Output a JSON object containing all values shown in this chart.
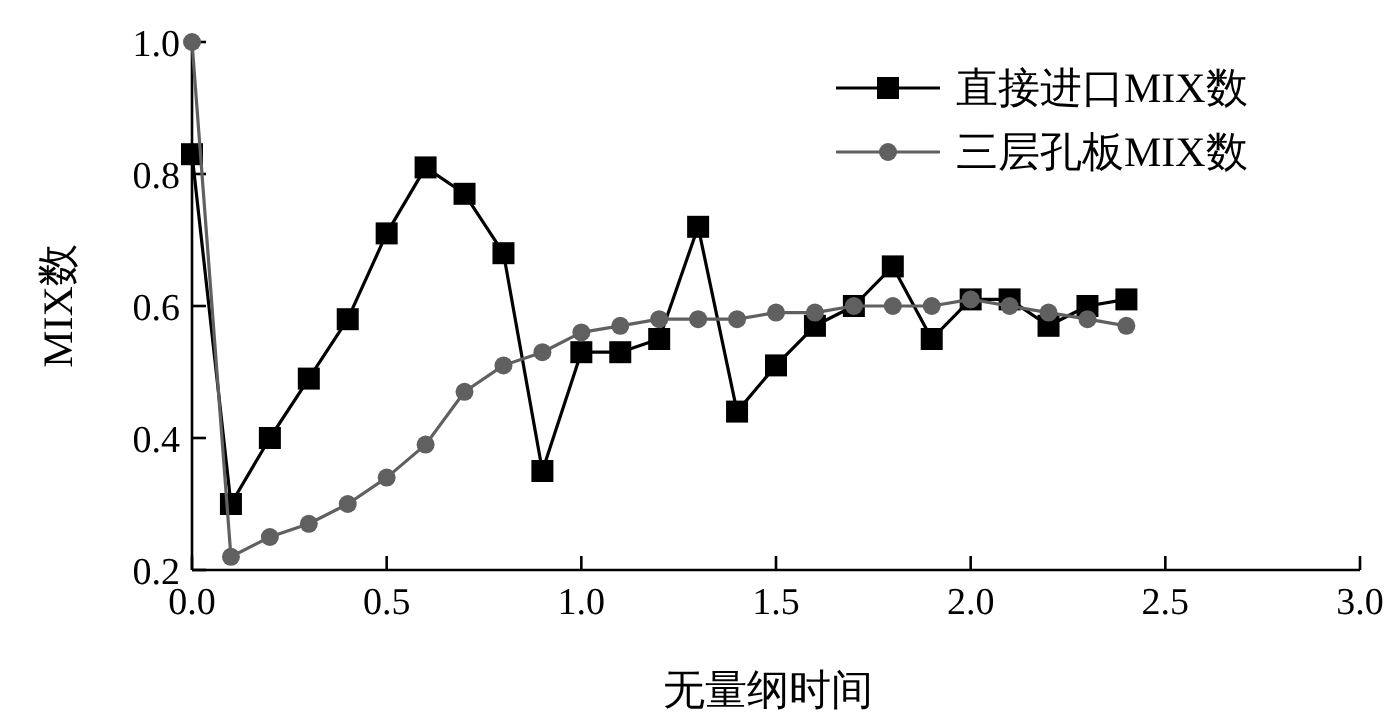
{
  "chart_data": {
    "type": "line",
    "xlabel": "无量纲时间",
    "ylabel": "MIX数",
    "xlim": [
      0,
      3
    ],
    "ylim": [
      0.2,
      1.0
    ],
    "xticks": [
      {
        "value": 0,
        "label": "0.0"
      },
      0.5,
      {
        "value": 1,
        "label": "1.0"
      },
      1.5,
      {
        "value": 2,
        "label": "2.0"
      },
      2.5,
      {
        "value": 3,
        "label": "3.0"
      }
    ],
    "yticks": [
      0.2,
      0.4,
      0.6,
      0.8,
      {
        "value": 1,
        "label": "1.0"
      }
    ],
    "grid": false,
    "legend": "top right",
    "x": [
      0,
      0.1,
      0.2,
      0.3,
      0.4,
      0.5,
      0.6,
      0.7,
      0.8,
      0.9,
      1.0,
      1.1,
      1.2,
      1.3,
      1.4,
      1.5,
      1.6,
      1.7,
      1.8,
      1.9,
      2.0,
      2.1,
      2.2,
      2.3,
      2.4
    ],
    "series": [
      {
        "name": "直接进口MIX数",
        "color": "#000000",
        "marker": "square",
        "values": [
          0.83,
          0.3,
          0.4,
          0.49,
          0.58,
          0.71,
          0.81,
          0.77,
          0.68,
          0.35,
          0.53,
          0.53,
          0.55,
          0.72,
          0.44,
          0.51,
          0.57,
          0.6,
          0.66,
          0.55,
          0.61,
          0.61,
          0.57,
          0.6,
          0.61
        ]
      },
      {
        "name": "三层孔板MIX数",
        "color": "#606060",
        "marker": "circle",
        "values": [
          1.0,
          0.22,
          0.25,
          0.27,
          0.3,
          0.34,
          0.39,
          0.47,
          0.51,
          0.53,
          0.56,
          0.57,
          0.58,
          0.58,
          0.58,
          0.59,
          0.59,
          0.6,
          0.6,
          0.6,
          0.61,
          0.6,
          0.59,
          0.58,
          0.57
        ]
      }
    ]
  }
}
